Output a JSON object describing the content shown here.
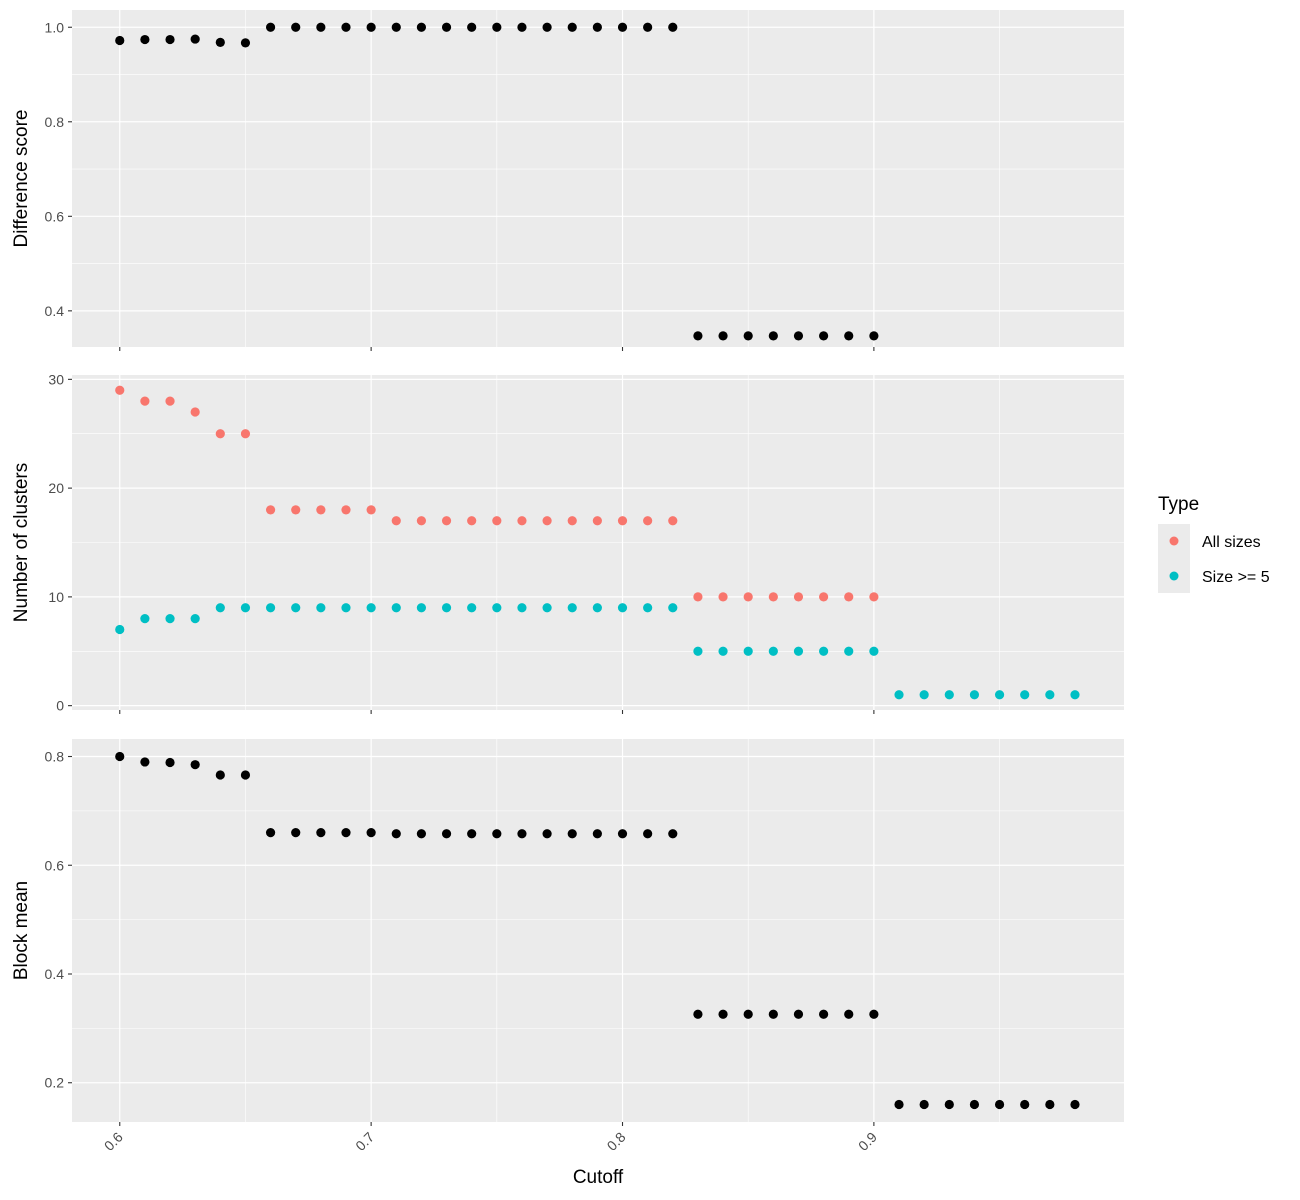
{
  "chart_data": [
    {
      "type": "scatter",
      "ylabel": "Difference score",
      "xlim": [
        0.581,
        0.9995
      ],
      "ylim": [
        0.3235,
        1.0365
      ],
      "yticks": [
        0.4,
        0.6,
        0.8,
        1.0
      ],
      "ytick_labels": [
        "0.4",
        "0.6",
        "0.8",
        "1.0"
      ],
      "grid": true,
      "series": [
        {
          "color": "#000000",
          "x": [
            0.6,
            0.61,
            0.62,
            0.63,
            0.64,
            0.65,
            0.66,
            0.67,
            0.68,
            0.69,
            0.7,
            0.71,
            0.72,
            0.73,
            0.74,
            0.75,
            0.76,
            0.77,
            0.78,
            0.79,
            0.8,
            0.81,
            0.82,
            0.83,
            0.84,
            0.85,
            0.86,
            0.87,
            0.88,
            0.89,
            0.9
          ],
          "y": [
            0.972,
            0.974,
            0.974,
            0.975,
            0.968,
            0.967,
            1.0,
            1.0,
            1.0,
            1.0,
            1.0,
            1.0,
            1.0,
            1.0,
            1.0,
            1.0,
            1.0,
            1.0,
            1.0,
            1.0,
            1.0,
            1.0,
            1.0,
            0.347,
            0.347,
            0.347,
            0.347,
            0.347,
            0.347,
            0.347,
            0.347
          ]
        }
      ]
    },
    {
      "type": "scatter",
      "ylabel": "Number of clusters",
      "xlim": [
        0.581,
        0.9995
      ],
      "ylim": [
        -0.4,
        30.4
      ],
      "yticks": [
        0,
        10,
        20,
        30
      ],
      "ytick_labels": [
        "0",
        "10",
        "20",
        "30"
      ],
      "grid": true,
      "legend": {
        "title": "Type",
        "position": "right",
        "entries": [
          "All sizes",
          "Size >= 5"
        ]
      },
      "series": [
        {
          "name": "All sizes",
          "color": "#F8766D",
          "x": [
            0.6,
            0.61,
            0.62,
            0.63,
            0.64,
            0.65,
            0.66,
            0.67,
            0.68,
            0.69,
            0.7,
            0.71,
            0.72,
            0.73,
            0.74,
            0.75,
            0.76,
            0.77,
            0.78,
            0.79,
            0.8,
            0.81,
            0.82,
            0.83,
            0.84,
            0.85,
            0.86,
            0.87,
            0.88,
            0.89,
            0.9
          ],
          "y": [
            29,
            28,
            28,
            27,
            25,
            25,
            18,
            18,
            18,
            18,
            18,
            17,
            17,
            17,
            17,
            17,
            17,
            17,
            17,
            17,
            17,
            17,
            17,
            10,
            10,
            10,
            10,
            10,
            10,
            10,
            10
          ]
        },
        {
          "name": "Size >= 5",
          "color": "#00BFC4",
          "x": [
            0.6,
            0.61,
            0.62,
            0.63,
            0.64,
            0.65,
            0.66,
            0.67,
            0.68,
            0.69,
            0.7,
            0.71,
            0.72,
            0.73,
            0.74,
            0.75,
            0.76,
            0.77,
            0.78,
            0.79,
            0.8,
            0.81,
            0.82,
            0.83,
            0.84,
            0.85,
            0.86,
            0.87,
            0.88,
            0.89,
            0.9,
            0.91,
            0.92,
            0.93,
            0.94,
            0.95,
            0.96,
            0.97,
            0.98
          ],
          "y": [
            7,
            8,
            8,
            8,
            9,
            9,
            9,
            9,
            9,
            9,
            9,
            9,
            9,
            9,
            9,
            9,
            9,
            9,
            9,
            9,
            9,
            9,
            9,
            5,
            5,
            5,
            5,
            5,
            5,
            5,
            5,
            1,
            1,
            1,
            1,
            1,
            1,
            1,
            1
          ]
        }
      ]
    },
    {
      "type": "scatter",
      "ylabel": "Block mean",
      "xlabel": "Cutoff",
      "xlim": [
        0.581,
        0.9995
      ],
      "ylim": [
        0.1278,
        0.8322
      ],
      "xticks": [
        0.6,
        0.7,
        0.8,
        0.9
      ],
      "xtick_labels": [
        "0.6",
        "0.7",
        "0.8",
        "0.9"
      ],
      "yticks": [
        0.2,
        0.4,
        0.6,
        0.8
      ],
      "ytick_labels": [
        "0.2",
        "0.4",
        "0.6",
        "0.8"
      ],
      "grid": true,
      "series": [
        {
          "color": "#000000",
          "x": [
            0.6,
            0.61,
            0.62,
            0.63,
            0.64,
            0.65,
            0.66,
            0.67,
            0.68,
            0.69,
            0.7,
            0.71,
            0.72,
            0.73,
            0.74,
            0.75,
            0.76,
            0.77,
            0.78,
            0.79,
            0.8,
            0.81,
            0.82,
            0.83,
            0.84,
            0.85,
            0.86,
            0.87,
            0.88,
            0.89,
            0.9,
            0.91,
            0.92,
            0.93,
            0.94,
            0.95,
            0.96,
            0.97,
            0.98
          ],
          "y": [
            0.8,
            0.79,
            0.789,
            0.785,
            0.766,
            0.766,
            0.66,
            0.66,
            0.66,
            0.66,
            0.66,
            0.658,
            0.658,
            0.658,
            0.658,
            0.658,
            0.658,
            0.658,
            0.658,
            0.658,
            0.658,
            0.658,
            0.658,
            0.326,
            0.326,
            0.326,
            0.326,
            0.326,
            0.326,
            0.326,
            0.326,
            0.16,
            0.16,
            0.16,
            0.16,
            0.16,
            0.16,
            0.16,
            0.16
          ]
        }
      ]
    }
  ]
}
